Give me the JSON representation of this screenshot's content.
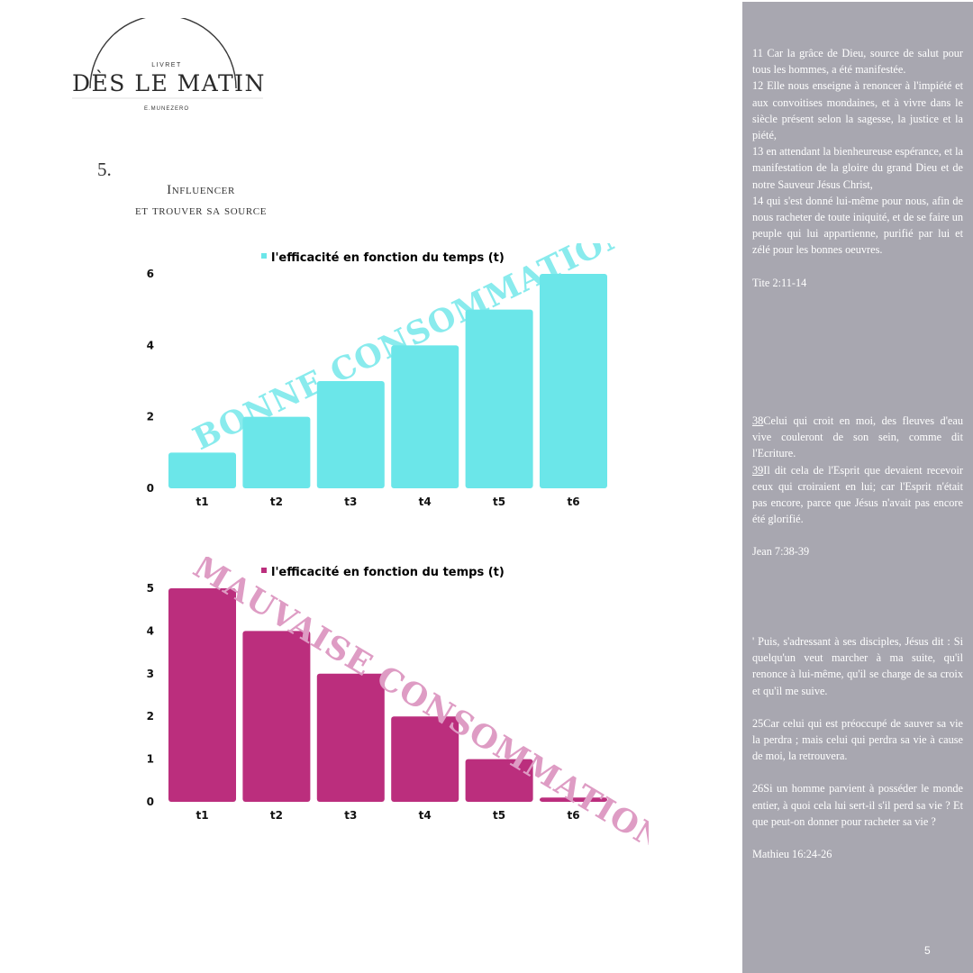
{
  "logo": {
    "small_label": "LIVRET",
    "title": "DÈS LE MATIN",
    "author": "E.MUNEZERO"
  },
  "section": {
    "number": "5.",
    "title_line1": "Influencer",
    "title_line2": "et trouver sa source"
  },
  "chart_data": [
    {
      "type": "bar",
      "legend": "l'efficacité en fonction du temps (t)",
      "categories": [
        "t1",
        "t2",
        "t3",
        "t4",
        "t5",
        "t6"
      ],
      "values": [
        1,
        2,
        3,
        4,
        5,
        6
      ],
      "yticks": [
        0,
        2,
        4,
        6
      ],
      "ylim": [
        0,
        6
      ],
      "color": "#6be6e9",
      "watermark": "BONNE CONSOMMATION",
      "watermark_color": "#6be6e9",
      "grid": false,
      "legend_position": "top-center"
    },
    {
      "type": "bar",
      "legend": "l'efficacité en fonction du temps (t)",
      "categories": [
        "t1",
        "t2",
        "t3",
        "t4",
        "t5",
        "t6"
      ],
      "values": [
        5,
        4,
        3,
        2,
        1,
        0.1
      ],
      "yticks": [
        0,
        1,
        2,
        3,
        4,
        5
      ],
      "ylim": [
        0,
        5
      ],
      "color": "#bb2e7d",
      "watermark": "MAUVAISE CONSOMMATION",
      "watermark_color": "#de9cc4",
      "grid": false,
      "legend_position": "top-center"
    }
  ],
  "panel": {
    "background": "#a8a7b0",
    "block1": {
      "verses": [
        "11 Car la grâce de Dieu, source de salut pour tous les hommes, a été manifestée.",
        "12 Elle nous enseigne à renoncer à l'impiété et aux convoitises mondaines, et à vivre dans le siècle présent selon la sagesse, la justice et la piété,",
        "13 en attendant la bienheureuse espérance, et la manifestation de la gloire du grand Dieu et de notre Sauveur Jésus Christ,",
        "14 qui s'est donné lui-même pour nous, afin de nous racheter de toute iniquité, et de se faire un peuple qui lui appartienne, purifié par lui et zélé pour les bonnes oeuvres."
      ],
      "reference": "Tite 2:11-14"
    },
    "block2": {
      "verses": [
        {
          "num": "38",
          "text": "Celui qui croit en moi, des fleuves d'eau vive couleront de son sein, comme dit l'Ecriture."
        },
        {
          "num": "39",
          "text": "Il dit cela de l'Esprit que devaient recevoir ceux qui croiraient en lui; car l'Esprit n'était pas encore, parce que Jésus n'avait pas encore été glorifié."
        }
      ],
      "reference": "Jean 7:38-39"
    },
    "block3": {
      "paragraphs": [
        "' Puis, s'adressant à ses disciples, Jésus dit : Si quelqu'un veut marcher à ma suite, qu'il renonce à lui-même, qu'il se charge de sa croix et qu'il me suive.",
        "25Car celui qui est préoccupé de sauver sa vie la perdra ; mais celui qui perdra sa vie à cause de moi, la retrouvera.",
        "26Si un homme parvient à posséder le monde entier, à quoi cela lui sert-il s'il perd sa vie ? Et que peut-on donner pour racheter sa vie ?"
      ],
      "reference": "Mathieu 16:24-26"
    },
    "page_number": "5"
  }
}
